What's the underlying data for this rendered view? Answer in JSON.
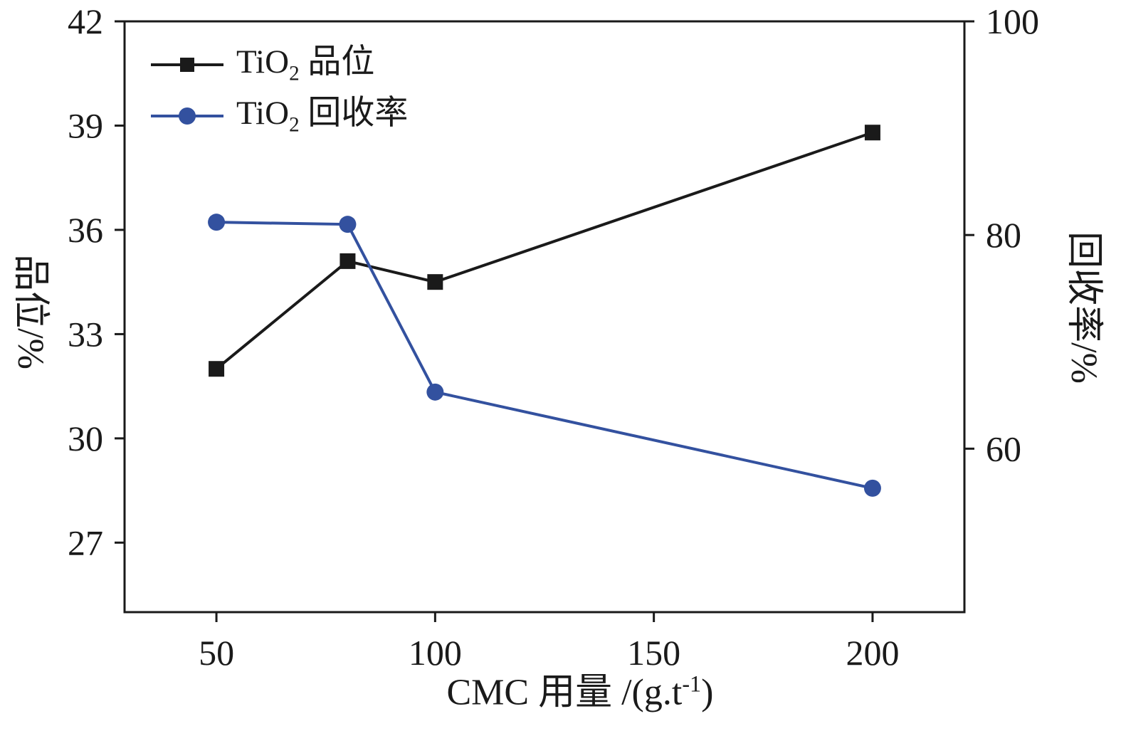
{
  "chart_data": {
    "type": "line",
    "title": "",
    "x": [
      50,
      80,
      100,
      200
    ],
    "series": [
      {
        "name": "TiO2 品位",
        "axis": "left",
        "marker": "square",
        "color": "#1a1a1a",
        "values": [
          32.0,
          35.1,
          34.5,
          38.8
        ]
      },
      {
        "name": "TiO2 回收率",
        "axis": "right",
        "marker": "circle",
        "color": "#33519f",
        "values": [
          81.2,
          81.0,
          65.3,
          56.3
        ]
      }
    ],
    "xlabel": "CMC 用量 /(g.t⁻¹)",
    "ylabel_left": "品位/%",
    "ylabel_right": "回收率/%",
    "x_ticks": [
      50,
      100,
      150,
      200
    ],
    "x_range": [
      29,
      221
    ],
    "left_ticks": [
      27,
      30,
      33,
      36,
      39,
      42
    ],
    "left_range": [
      25,
      42
    ],
    "right_ticks": [
      60,
      80,
      100
    ],
    "right_range": [
      44.7,
      100
    ],
    "grid": false,
    "legend_position": "top-left",
    "frame_color": "#1a1a1a"
  },
  "legend": {
    "items": [
      {
        "formula": "TiO",
        "formula_sub": "2",
        "suffix": " 品位",
        "color": "#1a1a1a",
        "marker": "square"
      },
      {
        "formula": "TiO",
        "formula_sub": "2",
        "suffix": " 回收率",
        "color": "#33519f",
        "marker": "circle"
      }
    ]
  },
  "axes": {
    "x_label_prefix": "CMC 用量 /(g.t",
    "x_label_sup": "-1",
    "x_label_suffix": ")",
    "y_left_label": "品位/%",
    "y_right_label": "回收率/%"
  }
}
